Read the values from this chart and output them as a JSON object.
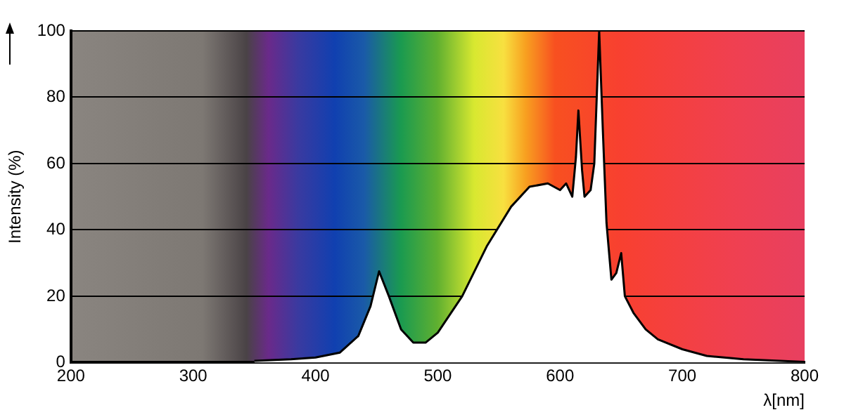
{
  "chart_data": {
    "type": "area",
    "xlabel": "λ[nm]",
    "ylabel": "Intensity (%)",
    "x": [
      350,
      380,
      400,
      420,
      435,
      445,
      452,
      460,
      470,
      480,
      490,
      500,
      520,
      540,
      560,
      575,
      590,
      600,
      605,
      610,
      613,
      615,
      618,
      620,
      625,
      628,
      632,
      635,
      638,
      642,
      646,
      650,
      653,
      660,
      670,
      680,
      700,
      720,
      750,
      780,
      800
    ],
    "series": [
      {
        "color": "#000000",
        "values": [
          0.5,
          1,
          1.5,
          3,
          8,
          17,
          27.5,
          20,
          10,
          6,
          6,
          9,
          20,
          35,
          47,
          53,
          54,
          52,
          54,
          50,
          62,
          76,
          58,
          50,
          52,
          60,
          100,
          70,
          42,
          25,
          27,
          33,
          20,
          15,
          10,
          7,
          4,
          2,
          1,
          0.5,
          0.2
        ]
      }
    ],
    "xlim": [
      200,
      800
    ],
    "xticks": [
      200,
      300,
      400,
      500,
      600,
      700,
      800
    ],
    "ylim": [
      0,
      100
    ],
    "yticks": [
      0,
      20,
      40,
      60,
      80,
      100
    ],
    "grid": "y",
    "legend": false
  }
}
